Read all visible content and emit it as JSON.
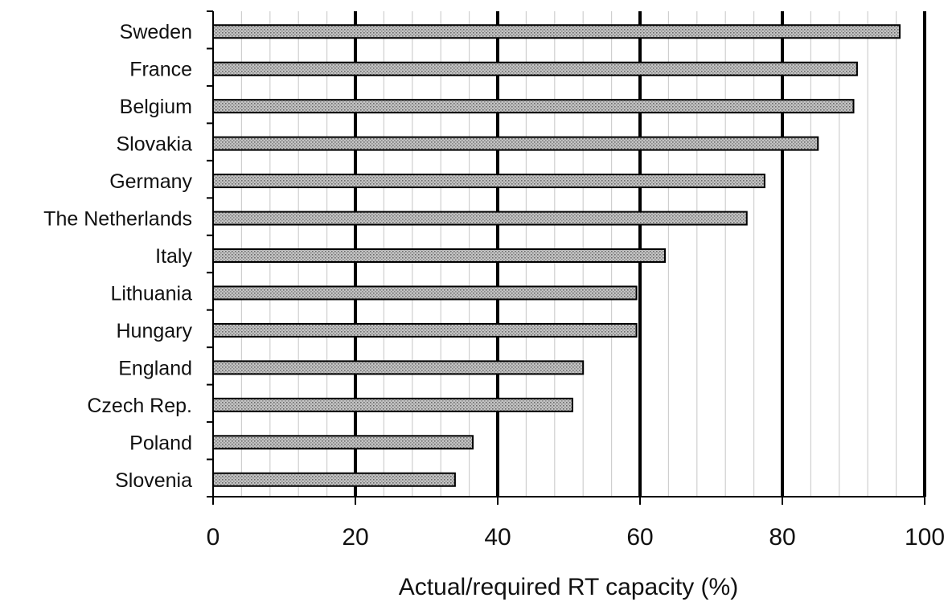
{
  "chart_data": {
    "type": "bar",
    "orientation": "horizontal",
    "categories": [
      "Sweden",
      "France",
      "Belgium",
      "Slovakia",
      "Germany",
      "The Netherlands",
      "Italy",
      "Lithuania",
      "Hungary",
      "England",
      "Czech Rep.",
      "Poland",
      "Slovenia"
    ],
    "values": [
      96.5,
      90.5,
      90,
      85,
      77.5,
      75,
      63.5,
      59.5,
      59.5,
      52,
      50.5,
      36.5,
      34
    ],
    "xlabel": "Actual/required RT capacity (%)",
    "ylabel": "",
    "xlim": [
      0,
      100
    ],
    "xticks": [
      "0",
      "20",
      "40",
      "60",
      "80",
      "100"
    ],
    "major_grid": true,
    "minor_grid": true,
    "colors": {
      "bar_fill": "#b8b8b8",
      "bar_stroke": "#000000",
      "major_grid": "#000000",
      "minor_grid": "#cfcfcf"
    }
  }
}
